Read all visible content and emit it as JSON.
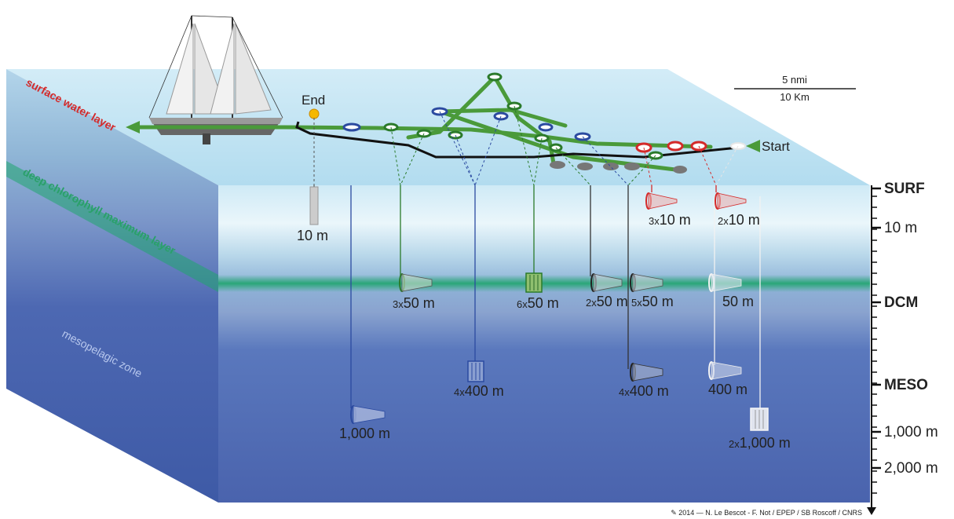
{
  "scale_bar": {
    "top": "5 nmi",
    "bottom": "10 Km"
  },
  "route": {
    "start": "Start",
    "end": "End"
  },
  "side_labels": {
    "surface": "surface water layer",
    "dcm": "deep chlorophyll maximum layer",
    "meso": "mesopelagic zone"
  },
  "depth_axis": {
    "ticks": [
      {
        "label": "SURF",
        "color": "#d42a2a",
        "bold": true
      },
      {
        "label": "10 m",
        "color": "#222222",
        "bold": false
      },
      {
        "label": "DCM",
        "color": "#1aa05a",
        "bold": true
      },
      {
        "label": "MESO",
        "color": "#2b4aa0",
        "bold": true
      },
      {
        "label": "1,000 m",
        "color": "#222222",
        "bold": false
      },
      {
        "label": "2,000 m",
        "color": "#222222",
        "bold": false
      }
    ]
  },
  "samplers": [
    {
      "mult": "",
      "depth": "10 m"
    },
    {
      "mult": "",
      "depth": "1,000 m"
    },
    {
      "mult": "3x",
      "depth": "50 m"
    },
    {
      "mult": "4x",
      "depth": "400 m"
    },
    {
      "mult": "6x",
      "depth": "50 m"
    },
    {
      "mult": "2x",
      "depth": "50 m"
    },
    {
      "mult": "5x",
      "depth": "50 m"
    },
    {
      "mult": "4x",
      "depth": "400 m"
    },
    {
      "mult": "3x",
      "depth": "10 m"
    },
    {
      "mult": "2x",
      "depth": "10 m"
    },
    {
      "mult": "",
      "depth": "50 m"
    },
    {
      "mult": "",
      "depth": "400 m"
    },
    {
      "mult": "2x",
      "depth": "1,000 m"
    }
  ],
  "credit": "✎ 2014 — N. Le Bescot - F. Not / EPEP / SB Roscoff / CNRS",
  "colors": {
    "surface_top": "#bfe3f2",
    "dcm_band": "#1fa56d",
    "meso": "#3a5aa8",
    "route_green": "#4a9a3a",
    "route_black": "#111111",
    "surf_red": "#d42a2a"
  }
}
